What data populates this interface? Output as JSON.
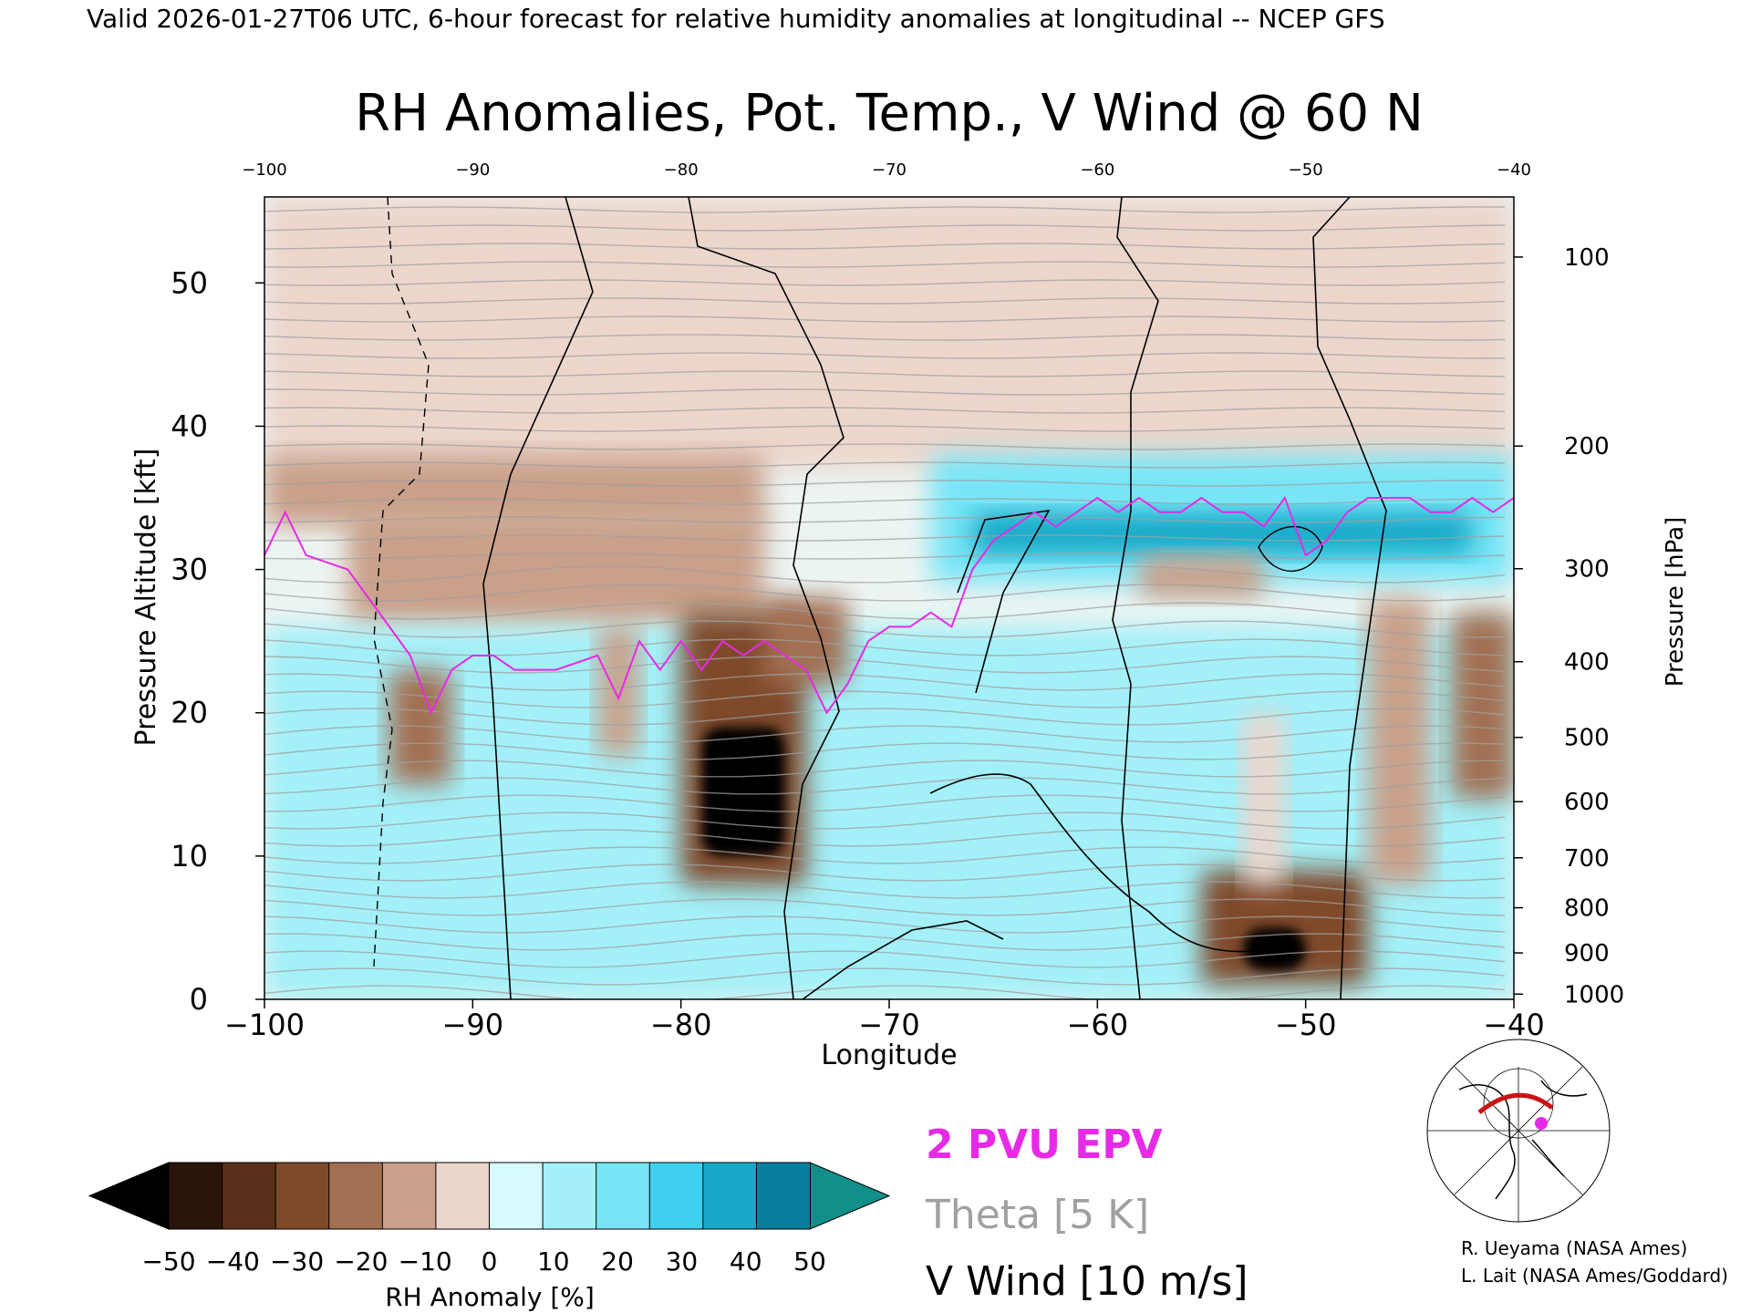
{
  "header": {
    "valid_line": "Valid 2026-01-27T06 UTC, 6-hour forecast for relative humidity anomalies at longitudinal -- NCEP GFS",
    "title": "RH Anomalies, Pot. Temp., V Wind @ 60 N"
  },
  "colors": {
    "epv": "#e62ae6",
    "theta": "#a0a0a0",
    "wind": "#000000",
    "neg_end": "#000000",
    "pos_end": "#118f88"
  },
  "chart_data": {
    "type": "heatmap",
    "xlabel": "Longitude",
    "ylabel_left": "Pressure Altitude [kft]",
    "ylabel_right": "Pressure [hPa]",
    "xlim": [
      -100,
      -40
    ],
    "ylim": [
      0,
      56
    ],
    "x_ticks": [
      "−100",
      "−90",
      "−80",
      "−70",
      "−60",
      "−50",
      "−40"
    ],
    "x_tick_values": [
      -100,
      -90,
      -80,
      -70,
      -60,
      -50,
      -40
    ],
    "top_ticks": [
      "−100",
      "−90",
      "−80",
      "−70",
      "−60",
      "−50",
      "−40"
    ],
    "y_ticks": [
      "0",
      "10",
      "20",
      "30",
      "40",
      "50"
    ],
    "y_tick_values": [
      0,
      10,
      20,
      30,
      40,
      50
    ],
    "pressure_ticks": [
      "100",
      "200",
      "300",
      "400",
      "500",
      "600",
      "700",
      "800",
      "900",
      "1000"
    ],
    "pressure_values": [
      100,
      200,
      300,
      400,
      500,
      600,
      700,
      800,
      900,
      1000
    ],
    "grid": false,
    "colorbar": {
      "label": "RH Anomaly [%]",
      "ticks": [
        "−50",
        "−40",
        "−30",
        "−20",
        "−10",
        "0",
        "10",
        "20",
        "30",
        "40",
        "50"
      ],
      "colors": [
        "#2b150a",
        "#5b3018",
        "#7f4a2a",
        "#a36f52",
        "#c9a08a",
        "#ecd6cc",
        "#d7fbfb",
        "#a3f0f8",
        "#78e5f6",
        "#3fd0ef",
        "#18a9c9",
        "#0a7e9d"
      ]
    },
    "legend": {
      "epv": "2 PVU EPV",
      "theta": "Theta [5 K]",
      "wind": "V Wind [10 m/s]"
    },
    "anomaly_regions": [
      {
        "x": [
          -100,
          -40
        ],
        "y": [
          37,
          56
        ],
        "value": -2
      },
      {
        "x": [
          -100,
          -76
        ],
        "y": [
          33,
          38
        ],
        "value": -12
      },
      {
        "x": [
          -96,
          -76
        ],
        "y": [
          26,
          34
        ],
        "value": -18
      },
      {
        "x": [
          -68,
          -40
        ],
        "y": [
          29,
          38
        ],
        "value": 28
      },
      {
        "x": [
          -66,
          -42
        ],
        "y": [
          31,
          34
        ],
        "value": 42
      },
      {
        "x": [
          -100,
          -40
        ],
        "y": [
          0,
          26
        ],
        "value": 18
      },
      {
        "x": [
          -94,
          -91
        ],
        "y": [
          15,
          23
        ],
        "value": -22
      },
      {
        "x": [
          -80,
          -74
        ],
        "y": [
          8,
          27
        ],
        "value": -35
      },
      {
        "x": [
          -79,
          -75
        ],
        "y": [
          10,
          19
        ],
        "value": -55
      },
      {
        "x": [
          -76,
          -72
        ],
        "y": [
          22,
          28
        ],
        "value": -25
      },
      {
        "x": [
          -84,
          -82
        ],
        "y": [
          17,
          26
        ],
        "value": -14
      },
      {
        "x": [
          -58,
          -52
        ],
        "y": [
          28,
          31
        ],
        "value": -20
      },
      {
        "x": [
          -55,
          -47
        ],
        "y": [
          1,
          9
        ],
        "value": -35
      },
      {
        "x": [
          -53,
          -50
        ],
        "y": [
          2,
          5
        ],
        "value": -55
      },
      {
        "x": [
          -53,
          -51
        ],
        "y": [
          8,
          20
        ],
        "value": -10
      },
      {
        "x": [
          -47,
          -44
        ],
        "y": [
          8,
          28
        ],
        "value": -12
      },
      {
        "x": [
          -43,
          -40
        ],
        "y": [
          14,
          27
        ],
        "value": -22
      }
    ],
    "series": [
      {
        "name": "2 PVU EPV",
        "x": [
          -100,
          -99,
          -98,
          -96,
          -95,
          -94,
          -93,
          -92,
          -91,
          -90,
          -89,
          -88,
          -86,
          -84,
          -83,
          -82,
          -81,
          -80,
          -79,
          -78,
          -77,
          -76,
          -75,
          -74,
          -73,
          -72,
          -71,
          -70,
          -69,
          -68,
          -67,
          -66,
          -65,
          -64,
          -63,
          -62,
          -61,
          -60,
          -59,
          -58,
          -57,
          -56,
          -55,
          -54,
          -53,
          -52,
          -51,
          -50,
          -49,
          -48,
          -47,
          -46,
          -45,
          -44,
          -43,
          -42,
          -41,
          -40
        ],
        "y": [
          31,
          34,
          31,
          30,
          28,
          26,
          24,
          20,
          23,
          24,
          24,
          23,
          23,
          24,
          21,
          25,
          23,
          25,
          23,
          25,
          24,
          25,
          24,
          23,
          20,
          22,
          25,
          26,
          26,
          27,
          26,
          30,
          32,
          33,
          34,
          33,
          34,
          35,
          34,
          35,
          34,
          34,
          35,
          34,
          34,
          33,
          35,
          31,
          32,
          34,
          35,
          35,
          35,
          34,
          34,
          35,
          34,
          35
        ]
      }
    ]
  },
  "credits": {
    "line1": "R. Ueyama (NASA Ames)",
    "line2": "L. Lait (NASA Ames/Goddard)"
  }
}
